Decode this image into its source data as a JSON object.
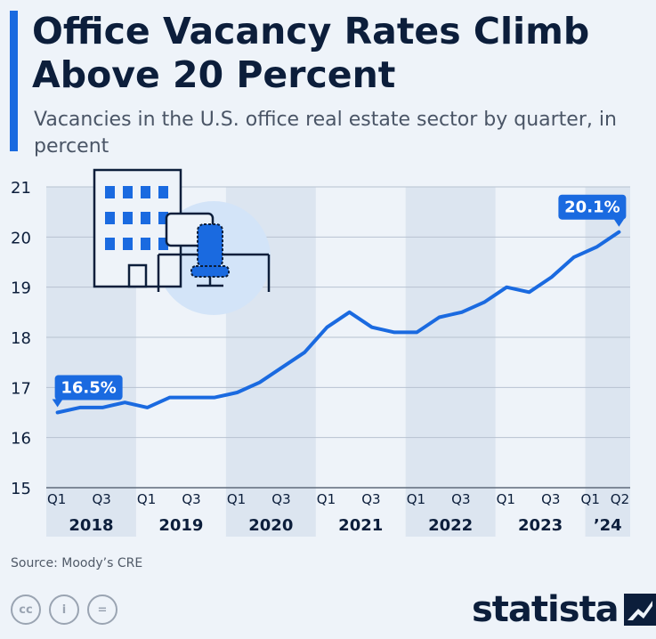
{
  "header": {
    "title": "Office Vacancy Rates Climb Above 20 Percent",
    "subtitle": "Vacancies in the U.S. office real estate sector by quarter, in percent"
  },
  "chart_data": {
    "type": "line",
    "x": [
      "2018 Q1",
      "2018 Q2",
      "2018 Q3",
      "2018 Q4",
      "2019 Q1",
      "2019 Q2",
      "2019 Q3",
      "2019 Q4",
      "2020 Q1",
      "2020 Q2",
      "2020 Q3",
      "2020 Q4",
      "2021 Q1",
      "2021 Q2",
      "2021 Q3",
      "2021 Q4",
      "2022 Q1",
      "2022 Q2",
      "2022 Q3",
      "2022 Q4",
      "2023 Q1",
      "2023 Q2",
      "2023 Q3",
      "2023 Q4",
      "2024 Q1",
      "2024 Q2"
    ],
    "series": [
      {
        "values": [
          16.5,
          16.6,
          16.6,
          16.7,
          16.6,
          16.8,
          16.8,
          16.8,
          16.9,
          17.1,
          17.4,
          17.7,
          18.2,
          18.5,
          18.2,
          18.1,
          18.1,
          18.4,
          18.5,
          18.7,
          19.0,
          18.9,
          19.2,
          19.6,
          19.8,
          20.1
        ]
      }
    ],
    "ylim": [
      15,
      21
    ],
    "y_ticks": [
      "15",
      "16",
      "17",
      "18",
      "19",
      "20",
      "21"
    ],
    "quarter_ticks": [
      "Q1",
      "Q3",
      "Q1",
      "Q3",
      "Q1",
      "Q3",
      "Q1",
      "Q3",
      "Q1",
      "Q3",
      "Q1",
      "Q3",
      "Q1",
      "Q2"
    ],
    "year_labels": [
      "2018",
      "2019",
      "2020",
      "2021",
      "2022",
      "2023",
      "’24"
    ],
    "annotations": [
      "16.5%",
      "20.1%"
    ],
    "grid": true,
    "line_color": "#1a6ae0"
  },
  "footer": {
    "source": "Source: Moody’s CRE",
    "license_icons": [
      "cc",
      "i",
      "="
    ],
    "brand": "statista"
  }
}
